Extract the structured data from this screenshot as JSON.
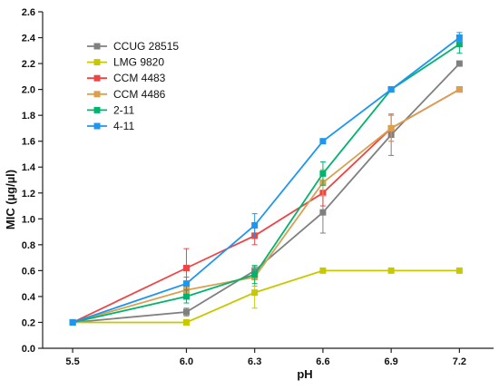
{
  "chart_data": {
    "type": "line",
    "title": "",
    "xlabel": "pH",
    "ylabel": "MIC (µg/µl)",
    "x": [
      5.5,
      6.0,
      6.3,
      6.6,
      6.9,
      7.2
    ],
    "x_tick_labels": [
      "5.5",
      "6.0",
      "6.3",
      "6.6",
      "6.9",
      "7.2"
    ],
    "ylim": [
      0,
      2.6
    ],
    "y_ticks": [
      0.0,
      0.2,
      0.4,
      0.6,
      0.8,
      1.0,
      1.2,
      1.4,
      1.6,
      1.8,
      2.0,
      2.2,
      2.4,
      2.6
    ],
    "y_tick_labels": [
      "0.0",
      "0.2",
      "0.4",
      "0.6",
      "0.8",
      "1.0",
      "1.2",
      "1.4",
      "1.6",
      "1.8",
      "2.0",
      "2.2",
      "2.4",
      "2.6"
    ],
    "grid": false,
    "legend_position": "top-left",
    "series": [
      {
        "name": "CCUG 28515",
        "color": "#808080",
        "values": [
          0.2,
          0.28,
          0.6,
          1.05,
          1.65,
          2.2
        ],
        "errors": [
          0,
          0.03,
          0.03,
          0.16,
          0.16,
          0
        ]
      },
      {
        "name": "LMG 9820",
        "color": "#c8c800",
        "values": [
          0.2,
          0.2,
          0.43,
          0.6,
          0.6,
          0.6
        ],
        "errors": [
          0,
          0,
          0.12,
          0,
          0,
          0
        ]
      },
      {
        "name": "CCM 4483",
        "color": "#ee4444",
        "values": [
          0.2,
          0.62,
          0.87,
          1.2,
          1.7,
          2.0
        ],
        "errors": [
          0,
          0.15,
          0.07,
          0.1,
          0.1,
          0
        ]
      },
      {
        "name": "CCM 4486",
        "color": "#d9a050",
        "values": [
          0.2,
          0.45,
          0.55,
          1.28,
          1.7,
          2.0
        ],
        "errors": [
          0,
          0.05,
          0.07,
          0.1,
          0.1,
          0
        ]
      },
      {
        "name": "2-11",
        "color": "#00b46e",
        "values": [
          0.2,
          0.4,
          0.57,
          1.35,
          2.0,
          2.35
        ],
        "errors": [
          0,
          0.05,
          0.07,
          0.09,
          0,
          0.07
        ]
      },
      {
        "name": "4-11",
        "color": "#1e96f0",
        "values": [
          0.2,
          0.5,
          0.95,
          1.6,
          2.0,
          2.4
        ],
        "errors": [
          0,
          0.05,
          0.09,
          0,
          0,
          0.04
        ]
      }
    ]
  }
}
